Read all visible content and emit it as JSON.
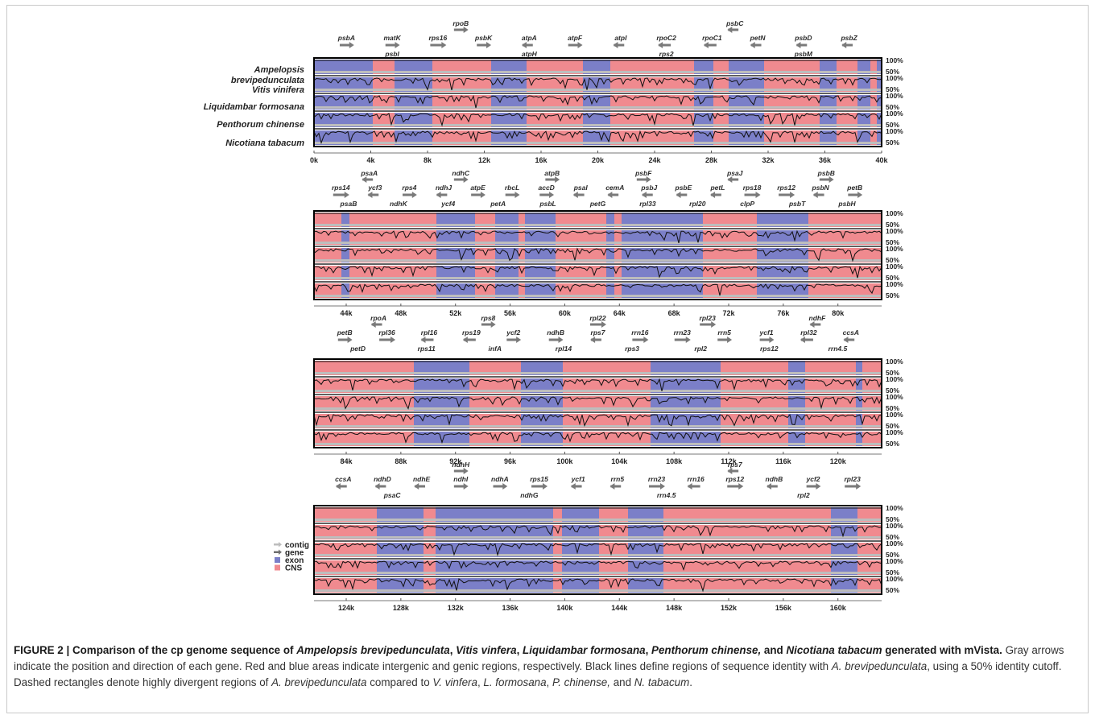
{
  "figure": {
    "label": "FIGURE 2 | Comparison of the cp genome sequence of ",
    "species_list": [
      {
        "name": "Ampelopsis brevipedunculata",
        "sep": ", "
      },
      {
        "name": "Vitis vinfera",
        "sep": ", "
      },
      {
        "name": "Liquidambar formosana",
        "sep": ", "
      },
      {
        "name": "Penthorum chinense,",
        "sep": " and "
      },
      {
        "name": "Nicotiana tabacum",
        "sep": " "
      }
    ],
    "tool": "generated with mVista.",
    "caption_part1": " Gray arrows indicate the position and direction of each gene. Red and blue areas indicate intergenic and genic regions, respectively. Black lines define regions of sequence identity with ",
    "caption_italic1": "A. brevipedunculata",
    "caption_part2": ", using a 50% identity cutoff. Dashed rectangles denote highly divergent regions of ",
    "caption_italic2": "A. brevipedunculata",
    "caption_part3": " compared to ",
    "caption_italic3": "V. vinfera",
    "caption_sep3": ", ",
    "caption_italic4": "L. formosana",
    "caption_sep4": ", ",
    "caption_italic5": "P. chinense,",
    "caption_sep5": " and ",
    "caption_italic6": "N. tabacum",
    "caption_end": "."
  },
  "chart_data": {
    "type": "mvista-alignment",
    "species_labels": [
      "Ampelopsis",
      "brevipedunculata",
      "Vitis vinifera",
      "Liquidambar formosana",
      "Penthorum chinense",
      "Nicotiana tabacum"
    ],
    "identity_labels": [
      "100%",
      "50%"
    ],
    "legend": [
      {
        "label": "contig",
        "color": "#bdbdbd"
      },
      {
        "label": "gene",
        "color": "#6f6f6f"
      },
      {
        "label": "exon",
        "color": "#7b7fc8"
      },
      {
        "label": "CNS",
        "color": "#f08a8f"
      }
    ],
    "colors": {
      "exon": "#7b7fc8",
      "cns": "#f08a8f",
      "arrow": "#7a7a7a"
    },
    "panels": [
      {
        "xticks": [
          "0k",
          "4k",
          "8k",
          "12k",
          "16k",
          "20k",
          "24k",
          "28k",
          "32k",
          "36k",
          "40k"
        ],
        "genes_top": [
          "rpoB",
          "psbC"
        ],
        "genes_mid": [
          "psbA",
          "matK",
          "rps16",
          "psbK",
          "atpA",
          "atpF",
          "atpI",
          "rpoC2",
          "rpoC1",
          "petN",
          "psbD",
          "psbZ"
        ],
        "genes_low": [
          "psbI",
          "atpH",
          "rps2",
          "psbM"
        ]
      },
      {
        "xticks": [
          "44k",
          "48k",
          "52k",
          "56k",
          "60k",
          "64k",
          "68k",
          "72k",
          "76k",
          "80k"
        ],
        "genes_top": [
          "psaA",
          "ndhC",
          "atpB",
          "psbF",
          "psaJ",
          "psbB"
        ],
        "genes_mid": [
          "rps14",
          "ycf3",
          "rps4",
          "ndhJ",
          "atpE",
          "rbcL",
          "accD",
          "psaI",
          "cemA",
          "psbJ",
          "psbE",
          "petL",
          "rps18",
          "rps12",
          "psbN",
          "petB"
        ],
        "genes_low": [
          "psaB",
          "ndhK",
          "ycf4",
          "petA",
          "psbL",
          "petG",
          "rpl33",
          "rpl20",
          "clpP",
          "psbT",
          "psbH"
        ]
      },
      {
        "xticks": [
          "84k",
          "88k",
          "92k",
          "96k",
          "100k",
          "104k",
          "108k",
          "112k",
          "116k",
          "120k"
        ],
        "genes_top": [
          "rpoA",
          "rps8",
          "rpl22",
          "rpl23",
          "ndhF"
        ],
        "genes_mid": [
          "petB",
          "rpl36",
          "rpl16",
          "rps19",
          "ycf2",
          "ndhB",
          "rps7",
          "rrn16",
          "rrn23",
          "rrn5",
          "ycf1",
          "rpl32",
          "ccsA"
        ],
        "genes_low": [
          "petD",
          "rps11",
          "infA",
          "rpl14",
          "rps3",
          "rpl2",
          "rps12",
          "rrn4.5"
        ]
      },
      {
        "xticks": [
          "124k",
          "128k",
          "132k",
          "136k",
          "140k",
          "144k",
          "148k",
          "152k",
          "156k",
          "160k"
        ],
        "genes_top": [
          "ndhH",
          "rps7"
        ],
        "genes_mid": [
          "ccsA",
          "ndhD",
          "ndhE",
          "ndhI",
          "ndhA",
          "rps15",
          "ycf1",
          "rrn5",
          "rrn23",
          "rrn16",
          "rps12",
          "ndhB",
          "ycf2",
          "rpl23"
        ],
        "genes_low": [
          "psaC",
          "ndhG",
          "rrn4.5",
          "rpl2"
        ]
      }
    ]
  }
}
